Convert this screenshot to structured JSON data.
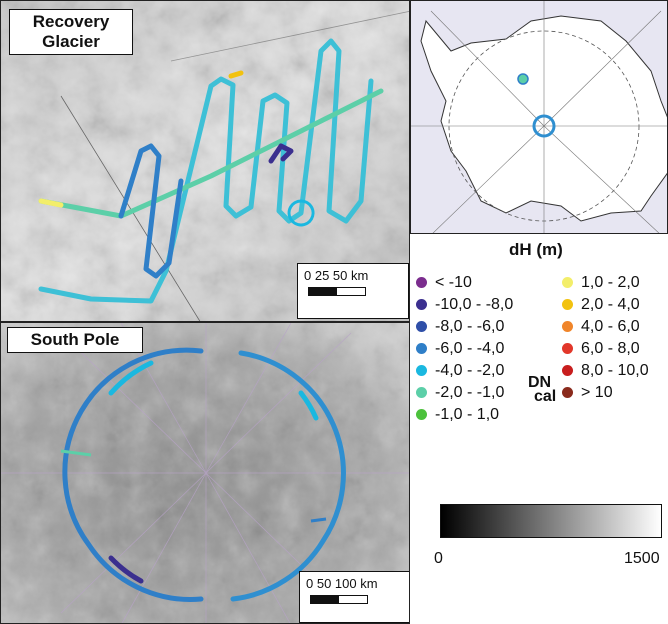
{
  "panels": {
    "recovery": {
      "title_line1": "Recovery",
      "title_line2": "Glacier",
      "scale_text": "0   25   50 km"
    },
    "southpole": {
      "title": "South Pole",
      "scale_text": "0  50 100 km"
    }
  },
  "legend": {
    "title": "dH (m)",
    "items_left": [
      {
        "label": "< -10",
        "color": "#7b2d8e"
      },
      {
        "label": "-10,0 - -8,0",
        "color": "#3b2f8f"
      },
      {
        "label": "-8,0 - -6,0",
        "color": "#2f4fa8"
      },
      {
        "label": "-6,0 - -4,0",
        "color": "#2f7fc8"
      },
      {
        "label": "-4,0 - -2,0",
        "color": "#1ab8e0"
      },
      {
        "label": "-2,0 - -1,0",
        "color": "#5ccfa8"
      },
      {
        "label": "-1,0 - 1,0",
        "color": "#4cc13c"
      }
    ],
    "items_right": [
      {
        "label": "1,0 - 2,0",
        "color": "#f3ee6a"
      },
      {
        "label": "2,0 - 4,0",
        "color": "#f2c20f"
      },
      {
        "label": "4,0 - 6,0",
        "color": "#f0852a"
      },
      {
        "label": "6,0 - 8,0",
        "color": "#e2372a"
      },
      {
        "label": "8,0 - 10,0",
        "color": "#c81e1e"
      },
      {
        "label": "> 10",
        "color": "#8a2a1c"
      }
    ]
  },
  "colorbar": {
    "title_main": "DN",
    "title_sub": "cal",
    "min": "0",
    "max": "1500"
  }
}
